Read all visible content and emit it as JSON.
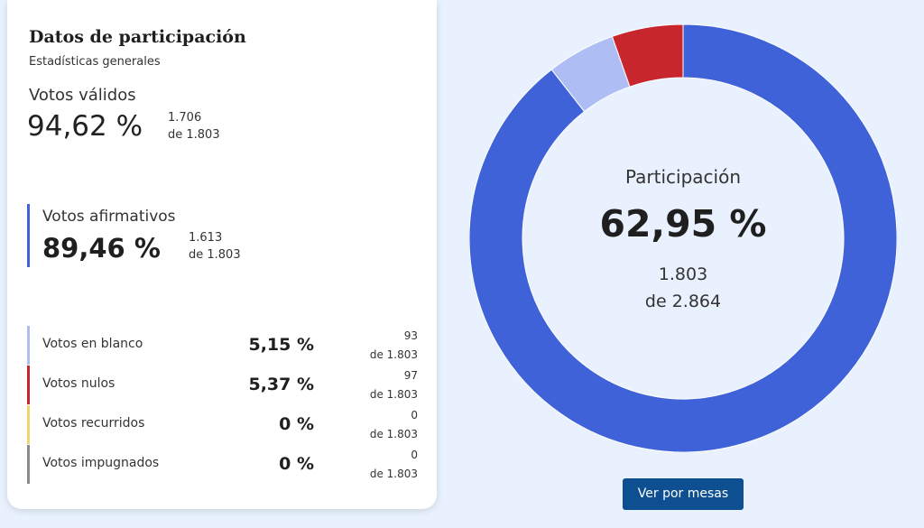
{
  "card": {
    "title": "Datos de participación",
    "subtitle": "Estadísticas generales"
  },
  "valid_votes": {
    "label": "Votos válidos",
    "pct": "94,62 %",
    "count": "1.706",
    "total": "de 1.803"
  },
  "affirmative_votes": {
    "label": "Votos afirmativos",
    "pct": "89,46 %",
    "count": "1.613",
    "total": "de 1.803",
    "color": "#3f62d9"
  },
  "rows": [
    {
      "label": "Votos en blanco",
      "pct": "5,15 %",
      "count": "93",
      "total": "de 1.803",
      "color": "#aebef5"
    },
    {
      "label": "Votos nulos",
      "pct": "5,37 %",
      "count": "97",
      "total": "de 1.803",
      "color": "#c8262d"
    },
    {
      "label": "Votos recurridos",
      "pct": "0 %",
      "count": "0",
      "total": "de 1.803",
      "color": "#f0d36a"
    },
    {
      "label": "Votos impugnados",
      "pct": "0 %",
      "count": "0",
      "total": "de 1.803",
      "color": "#8a8a8a"
    }
  ],
  "participation": {
    "label": "Participación",
    "pct": "62,95 %",
    "count": "1.803",
    "total": "de 2.864"
  },
  "chart_data": {
    "type": "pie",
    "categories": [
      "Votos afirmativos",
      "Votos en blanco",
      "Votos nulos",
      "Votos recurridos",
      "Votos impugnados"
    ],
    "values": [
      1613,
      93,
      97,
      0,
      0
    ],
    "colors": [
      "#3f62d9",
      "#aebef5",
      "#c8262d",
      "#f0d36a",
      "#8a8a8a"
    ]
  },
  "button": {
    "label": "Ver por mesas"
  }
}
